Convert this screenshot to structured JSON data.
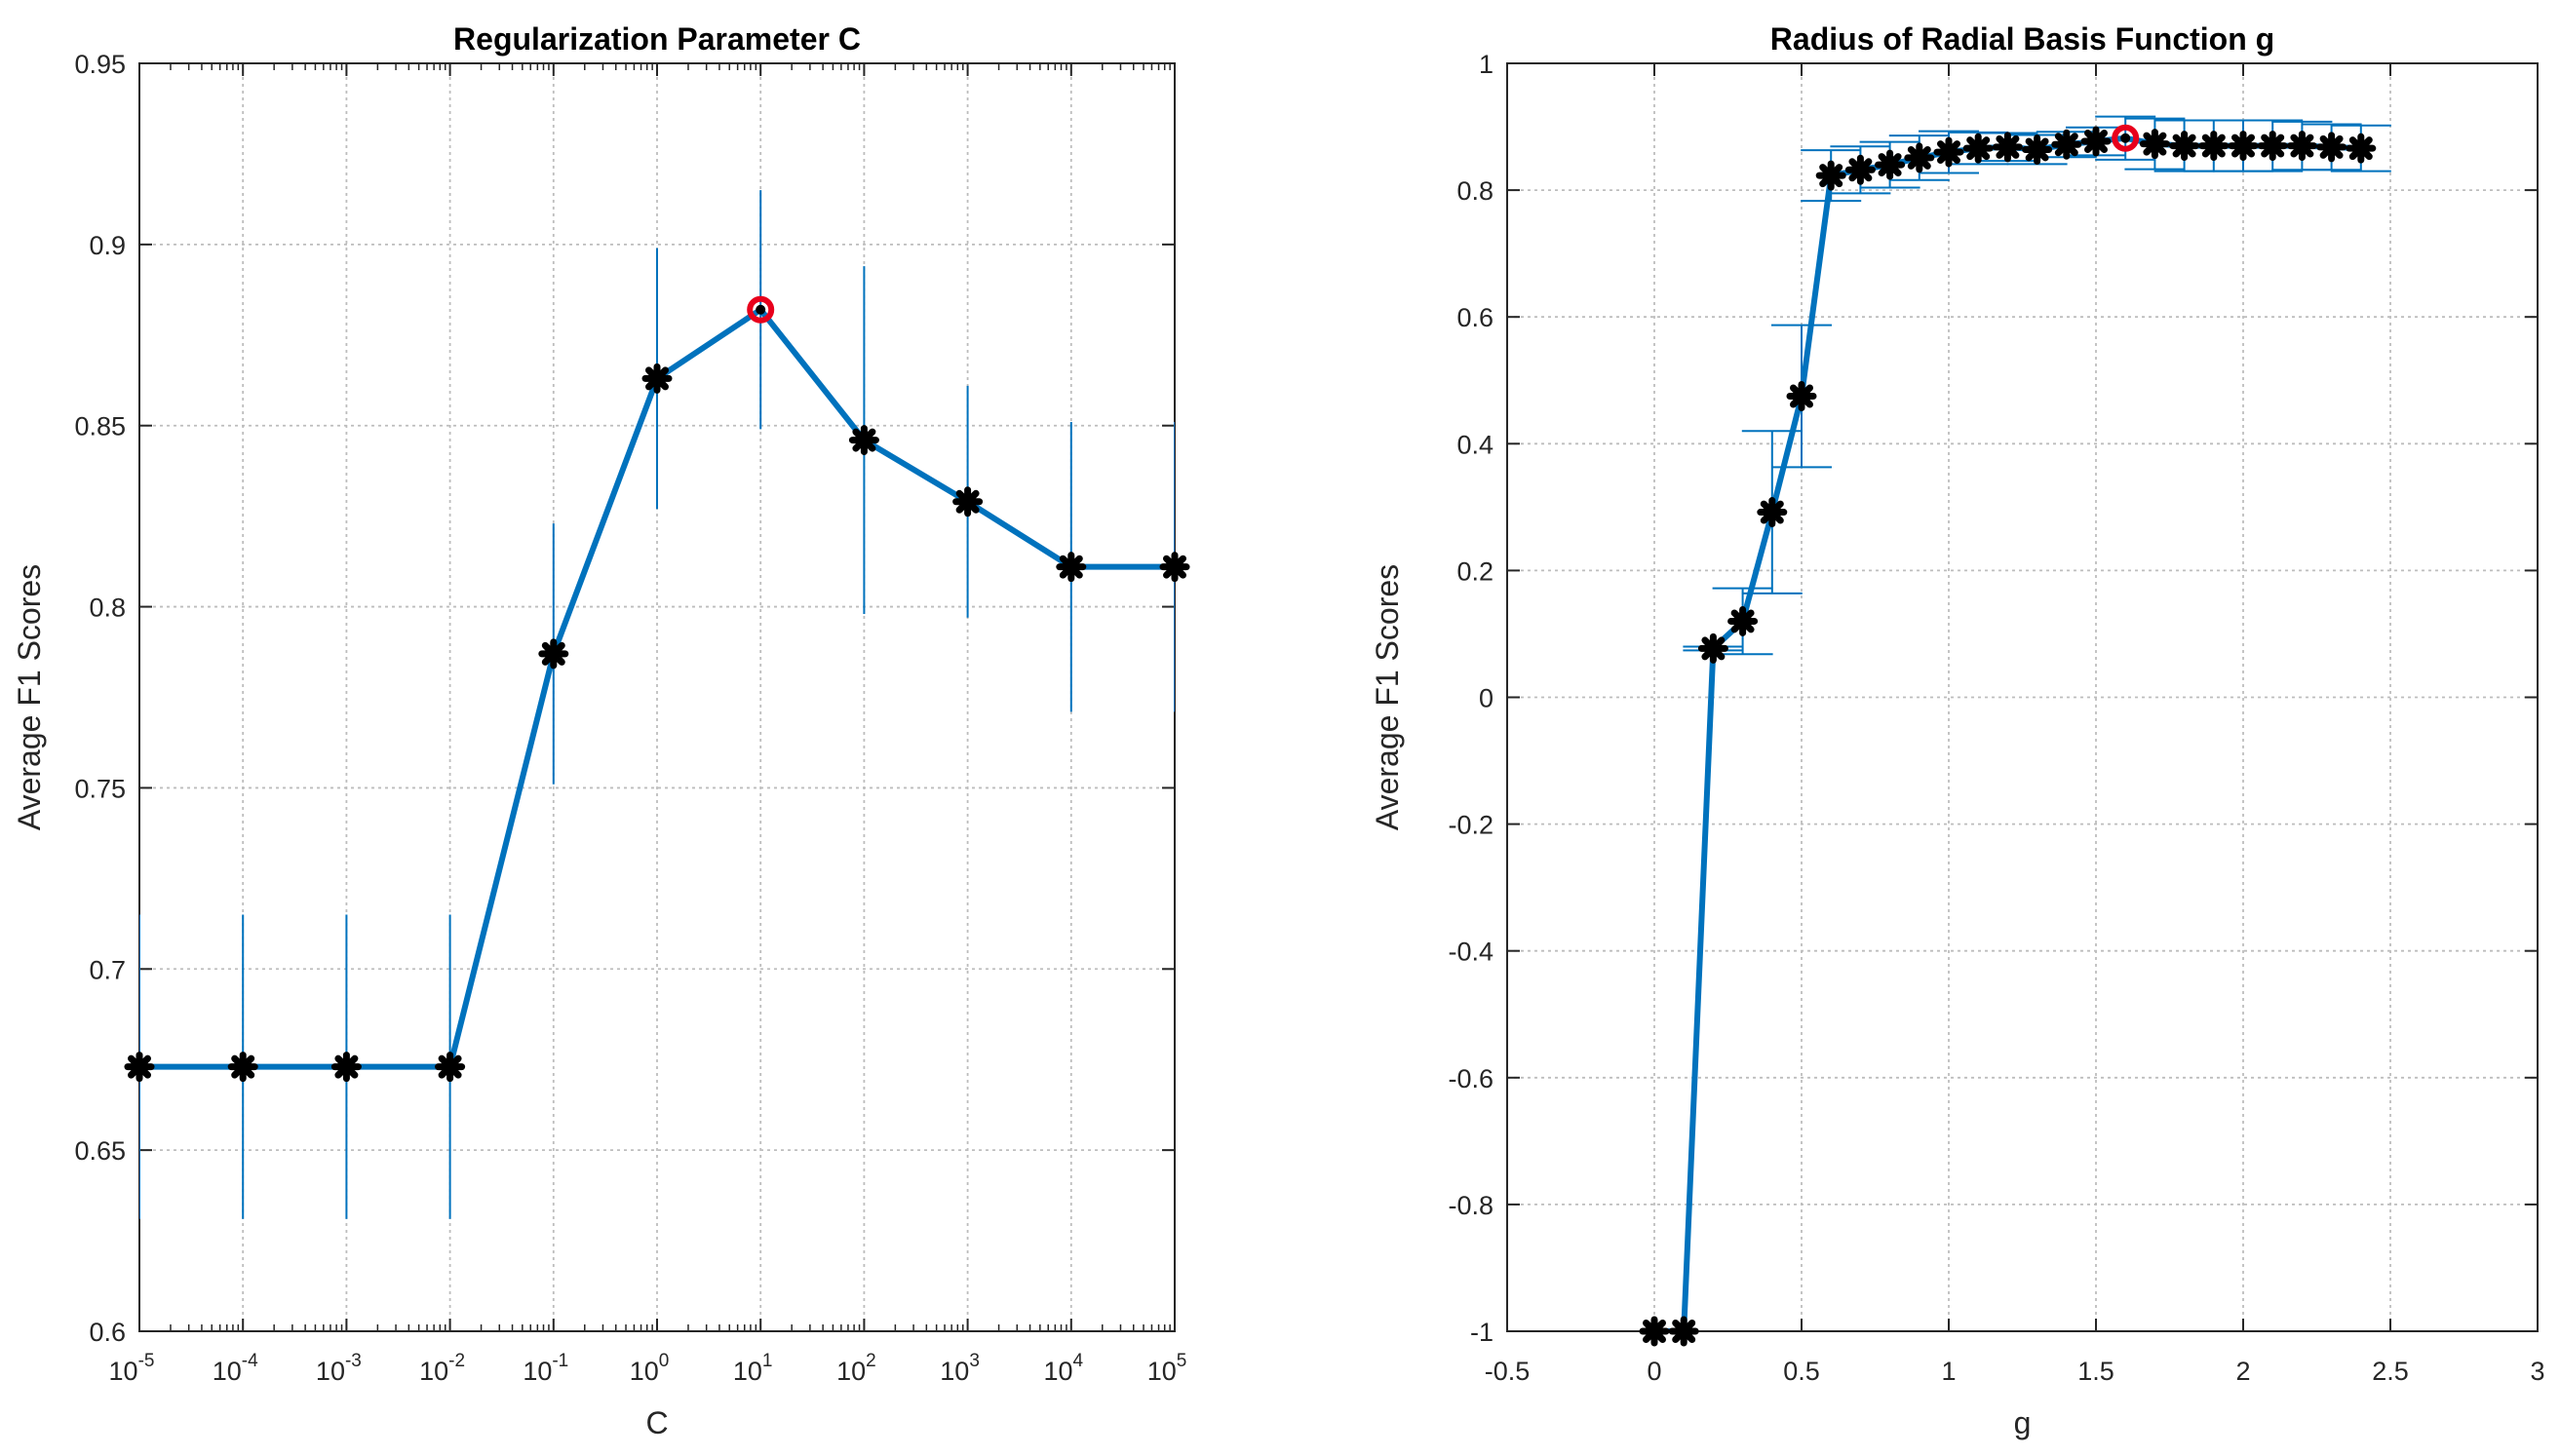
{
  "colors": {
    "line": "#0072BD",
    "marker": "#000000",
    "best_marker": "#E8001C",
    "grid": "#BDBDBD",
    "axes": "#262626"
  },
  "chart_data": [
    {
      "type": "line",
      "title": "Regularization Parameter C",
      "xlabel": "C",
      "ylabel": "Average F1 Scores",
      "x_scale": "log",
      "xlim": [
        1e-05,
        100000
      ],
      "ylim": [
        0.6,
        0.95
      ],
      "x_ticks": [
        {
          "base": "10",
          "exp": "-5",
          "value": 1e-05
        },
        {
          "base": "10",
          "exp": "-4",
          "value": 0.0001
        },
        {
          "base": "10",
          "exp": "-3",
          "value": 0.001
        },
        {
          "base": "10",
          "exp": "-2",
          "value": 0.01
        },
        {
          "base": "10",
          "exp": "-1",
          "value": 0.1
        },
        {
          "base": "10",
          "exp": "0",
          "value": 1
        },
        {
          "base": "10",
          "exp": "1",
          "value": 10
        },
        {
          "base": "10",
          "exp": "2",
          "value": 100
        },
        {
          "base": "10",
          "exp": "3",
          "value": 1000
        },
        {
          "base": "10",
          "exp": "4",
          "value": 10000
        },
        {
          "base": "10",
          "exp": "5",
          "value": 100000
        }
      ],
      "y_ticks": [
        "0.6",
        "0.65",
        "0.7",
        "0.75",
        "0.8",
        "0.85",
        "0.9",
        "0.95"
      ],
      "grid": true,
      "errorbar_caps": false,
      "series": [
        {
          "x": [
            1e-05,
            0.0001,
            0.001,
            0.01,
            0.1,
            1,
            10,
            100,
            1000,
            10000,
            100000
          ],
          "y": [
            0.673,
            0.673,
            0.673,
            0.673,
            0.787,
            0.863,
            0.882,
            0.846,
            0.829,
            0.811,
            0.811
          ],
          "err": [
            0.042,
            0.042,
            0.042,
            0.042,
            0.036,
            0.036,
            0.033,
            0.048,
            0.032,
            0.04,
            0.04
          ]
        }
      ],
      "best_index": 6
    },
    {
      "type": "line",
      "title": "Radius of Radial Basis Function g",
      "xlabel": "g",
      "ylabel": "Average F1 Scores",
      "x_scale": "linear",
      "xlim": [
        -0.5,
        3
      ],
      "ylim": [
        -1,
        1
      ],
      "x_ticks": [
        "-0.5",
        "0",
        "0.5",
        "1",
        "1.5",
        "2",
        "2.5",
        "3"
      ],
      "y_ticks": [
        "-1",
        "-0.8",
        "-0.6",
        "-0.4",
        "-0.2",
        "0",
        "0.2",
        "0.4",
        "0.6",
        "0.8",
        "1"
      ],
      "grid": true,
      "errorbar_caps": true,
      "series": [
        {
          "x": [
            0.0,
            0.1,
            0.2,
            0.3,
            0.4,
            0.5,
            0.6,
            0.7,
            0.8,
            0.9,
            1.0,
            1.1,
            1.2,
            1.3,
            1.4,
            1.5,
            1.6,
            1.7,
            1.8,
            1.9,
            2.0,
            2.1,
            2.2,
            2.3,
            2.4
          ],
          "y": [
            -1.0,
            -1.0,
            0.077,
            0.12,
            0.292,
            0.475,
            0.823,
            0.832,
            0.84,
            0.851,
            0.86,
            0.866,
            0.868,
            0.864,
            0.872,
            0.877,
            0.882,
            0.873,
            0.87,
            0.87,
            0.87,
            0.87,
            0.87,
            0.868,
            0.866
          ],
          "err": [
            0.0,
            0.0,
            0.003,
            0.052,
            0.128,
            0.112,
            0.04,
            0.037,
            0.036,
            0.035,
            0.033,
            0.025,
            0.022,
            0.023,
            0.02,
            0.022,
            0.034,
            0.04,
            0.04,
            0.04,
            0.04,
            0.04,
            0.038,
            0.036,
            0.036
          ]
        }
      ],
      "best_index": 16
    }
  ]
}
